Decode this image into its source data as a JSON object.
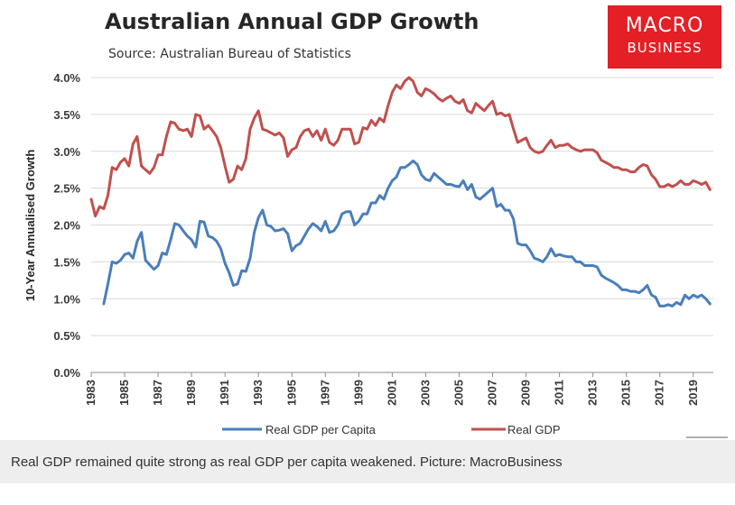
{
  "header": {
    "title": "Australian Annual GDP Growth",
    "subtitle": "Source: Australian Bureau of Statistics"
  },
  "logo": {
    "line1": "MACRO",
    "line2": "BUSINESS",
    "background_color": "#e41f26"
  },
  "caption": "Real GDP remained quite strong as real GDP per capita weakened. Picture: MacroBusiness",
  "chart_data": {
    "type": "line",
    "title": "Australian Annual GDP Growth",
    "xlabel": "",
    "ylabel": "10-Year Annualised Growth",
    "xlim": [
      1983,
      2020.2
    ],
    "ylim": [
      0,
      4
    ],
    "x_tick_labels": [
      "1983",
      "1985",
      "1987",
      "1989",
      "1991",
      "1993",
      "1995",
      "1997",
      "1999",
      "2001",
      "2003",
      "2005",
      "2007",
      "2009",
      "2011",
      "2013",
      "2015",
      "2017",
      "2019"
    ],
    "y_tick_labels": [
      "0.0%",
      "0.5%",
      "1.0%",
      "1.5%",
      "2.0%",
      "2.5%",
      "3.0%",
      "3.5%",
      "4.0%"
    ],
    "grid": "horizontal",
    "legend_position": "bottom",
    "series": [
      {
        "name": "Real GDP per Capita",
        "color": "#4a7ebb",
        "points": [
          [
            1983.75,
            0.93
          ],
          [
            1984.0,
            1.2
          ],
          [
            1984.25,
            1.5
          ],
          [
            1984.5,
            1.48
          ],
          [
            1984.75,
            1.52
          ],
          [
            1985.0,
            1.6
          ],
          [
            1985.25,
            1.62
          ],
          [
            1985.5,
            1.55
          ],
          [
            1985.75,
            1.78
          ],
          [
            1986.0,
            1.9
          ],
          [
            1986.25,
            1.52
          ],
          [
            1986.5,
            1.46
          ],
          [
            1986.75,
            1.4
          ],
          [
            1987.0,
            1.45
          ],
          [
            1987.25,
            1.62
          ],
          [
            1987.5,
            1.6
          ],
          [
            1987.75,
            1.8
          ],
          [
            1988.0,
            2.02
          ],
          [
            1988.25,
            2.0
          ],
          [
            1988.5,
            1.92
          ],
          [
            1988.75,
            1.85
          ],
          [
            1989.0,
            1.8
          ],
          [
            1989.25,
            1.7
          ],
          [
            1989.5,
            2.05
          ],
          [
            1989.75,
            2.04
          ],
          [
            1990.0,
            1.85
          ],
          [
            1990.25,
            1.83
          ],
          [
            1990.5,
            1.78
          ],
          [
            1990.75,
            1.68
          ],
          [
            1991.0,
            1.48
          ],
          [
            1991.25,
            1.35
          ],
          [
            1991.5,
            1.18
          ],
          [
            1991.75,
            1.2
          ],
          [
            1992.0,
            1.38
          ],
          [
            1992.25,
            1.37
          ],
          [
            1992.5,
            1.55
          ],
          [
            1992.75,
            1.9
          ],
          [
            1993.0,
            2.1
          ],
          [
            1993.25,
            2.2
          ],
          [
            1993.5,
            2.0
          ],
          [
            1993.75,
            1.98
          ],
          [
            1994.0,
            1.92
          ],
          [
            1994.25,
            1.93
          ],
          [
            1994.5,
            1.95
          ],
          [
            1994.75,
            1.88
          ],
          [
            1995.0,
            1.65
          ],
          [
            1995.25,
            1.72
          ],
          [
            1995.5,
            1.75
          ],
          [
            1995.75,
            1.85
          ],
          [
            1996.0,
            1.95
          ],
          [
            1996.25,
            2.02
          ],
          [
            1996.5,
            1.98
          ],
          [
            1996.75,
            1.92
          ],
          [
            1997.0,
            2.05
          ],
          [
            1997.25,
            1.9
          ],
          [
            1997.5,
            1.92
          ],
          [
            1997.75,
            2.0
          ],
          [
            1998.0,
            2.15
          ],
          [
            1998.25,
            2.18
          ],
          [
            1998.5,
            2.18
          ],
          [
            1998.75,
            2.0
          ],
          [
            1999.0,
            2.05
          ],
          [
            1999.25,
            2.15
          ],
          [
            1999.5,
            2.15
          ],
          [
            1999.75,
            2.3
          ],
          [
            2000.0,
            2.3
          ],
          [
            2000.25,
            2.4
          ],
          [
            2000.5,
            2.35
          ],
          [
            2000.75,
            2.5
          ],
          [
            2001.0,
            2.6
          ],
          [
            2001.25,
            2.65
          ],
          [
            2001.5,
            2.78
          ],
          [
            2001.75,
            2.78
          ],
          [
            2002.0,
            2.82
          ],
          [
            2002.25,
            2.87
          ],
          [
            2002.5,
            2.82
          ],
          [
            2002.75,
            2.68
          ],
          [
            2003.0,
            2.62
          ],
          [
            2003.25,
            2.6
          ],
          [
            2003.5,
            2.7
          ],
          [
            2003.75,
            2.65
          ],
          [
            2004.0,
            2.6
          ],
          [
            2004.25,
            2.55
          ],
          [
            2004.5,
            2.55
          ],
          [
            2004.75,
            2.53
          ],
          [
            2005.0,
            2.52
          ],
          [
            2005.25,
            2.6
          ],
          [
            2005.5,
            2.48
          ],
          [
            2005.75,
            2.55
          ],
          [
            2006.0,
            2.38
          ],
          [
            2006.25,
            2.35
          ],
          [
            2006.5,
            2.4
          ],
          [
            2006.75,
            2.45
          ],
          [
            2007.0,
            2.5
          ],
          [
            2007.25,
            2.25
          ],
          [
            2007.5,
            2.28
          ],
          [
            2007.75,
            2.2
          ],
          [
            2008.0,
            2.2
          ],
          [
            2008.25,
            2.08
          ],
          [
            2008.5,
            1.75
          ],
          [
            2008.75,
            1.73
          ],
          [
            2009.0,
            1.73
          ],
          [
            2009.25,
            1.65
          ],
          [
            2009.5,
            1.55
          ],
          [
            2009.75,
            1.53
          ],
          [
            2010.0,
            1.5
          ],
          [
            2010.25,
            1.57
          ],
          [
            2010.5,
            1.68
          ],
          [
            2010.75,
            1.58
          ],
          [
            2011.0,
            1.6
          ],
          [
            2011.25,
            1.58
          ],
          [
            2011.5,
            1.57
          ],
          [
            2011.75,
            1.57
          ],
          [
            2012.0,
            1.5
          ],
          [
            2012.25,
            1.5
          ],
          [
            2012.5,
            1.45
          ],
          [
            2012.75,
            1.45
          ],
          [
            2013.0,
            1.45
          ],
          [
            2013.25,
            1.43
          ],
          [
            2013.5,
            1.32
          ],
          [
            2013.75,
            1.28
          ],
          [
            2014.0,
            1.25
          ],
          [
            2014.25,
            1.22
          ],
          [
            2014.5,
            1.18
          ],
          [
            2014.75,
            1.12
          ],
          [
            2015.0,
            1.12
          ],
          [
            2015.25,
            1.1
          ],
          [
            2015.5,
            1.1
          ],
          [
            2015.75,
            1.08
          ],
          [
            2016.0,
            1.12
          ],
          [
            2016.25,
            1.18
          ],
          [
            2016.5,
            1.05
          ],
          [
            2016.75,
            1.02
          ],
          [
            2017.0,
            0.9
          ],
          [
            2017.25,
            0.9
          ],
          [
            2017.5,
            0.92
          ],
          [
            2017.75,
            0.9
          ],
          [
            2018.0,
            0.95
          ],
          [
            2018.25,
            0.92
          ],
          [
            2018.5,
            1.05
          ],
          [
            2018.75,
            1.0
          ],
          [
            2019.0,
            1.05
          ],
          [
            2019.25,
            1.02
          ],
          [
            2019.5,
            1.05
          ],
          [
            2019.75,
            1.0
          ],
          [
            2020.0,
            0.93
          ]
        ]
      },
      {
        "name": "Real GDP",
        "color": "#c0504d",
        "points": [
          [
            1983.0,
            2.35
          ],
          [
            1983.25,
            2.12
          ],
          [
            1983.5,
            2.25
          ],
          [
            1983.75,
            2.22
          ],
          [
            1984.0,
            2.4
          ],
          [
            1984.25,
            2.78
          ],
          [
            1984.5,
            2.75
          ],
          [
            1984.75,
            2.85
          ],
          [
            1985.0,
            2.9
          ],
          [
            1985.25,
            2.8
          ],
          [
            1985.5,
            3.1
          ],
          [
            1985.75,
            3.2
          ],
          [
            1986.0,
            2.8
          ],
          [
            1986.25,
            2.75
          ],
          [
            1986.5,
            2.7
          ],
          [
            1986.75,
            2.78
          ],
          [
            1987.0,
            2.95
          ],
          [
            1987.25,
            2.95
          ],
          [
            1987.5,
            3.2
          ],
          [
            1987.75,
            3.4
          ],
          [
            1988.0,
            3.38
          ],
          [
            1988.25,
            3.3
          ],
          [
            1988.5,
            3.28
          ],
          [
            1988.75,
            3.3
          ],
          [
            1989.0,
            3.2
          ],
          [
            1989.25,
            3.5
          ],
          [
            1989.5,
            3.48
          ],
          [
            1989.75,
            3.3
          ],
          [
            1990.0,
            3.35
          ],
          [
            1990.25,
            3.28
          ],
          [
            1990.5,
            3.2
          ],
          [
            1990.75,
            3.05
          ],
          [
            1991.0,
            2.8
          ],
          [
            1991.25,
            2.58
          ],
          [
            1991.5,
            2.62
          ],
          [
            1991.75,
            2.8
          ],
          [
            1992.0,
            2.75
          ],
          [
            1992.25,
            2.9
          ],
          [
            1992.5,
            3.3
          ],
          [
            1992.75,
            3.45
          ],
          [
            1993.0,
            3.55
          ],
          [
            1993.25,
            3.3
          ],
          [
            1993.5,
            3.28
          ],
          [
            1993.75,
            3.25
          ],
          [
            1994.0,
            3.22
          ],
          [
            1994.25,
            3.25
          ],
          [
            1994.5,
            3.18
          ],
          [
            1994.75,
            2.93
          ],
          [
            1995.0,
            3.02
          ],
          [
            1995.25,
            3.05
          ],
          [
            1995.5,
            3.2
          ],
          [
            1995.75,
            3.28
          ],
          [
            1996.0,
            3.3
          ],
          [
            1996.25,
            3.2
          ],
          [
            1996.5,
            3.28
          ],
          [
            1996.75,
            3.15
          ],
          [
            1997.0,
            3.3
          ],
          [
            1997.25,
            3.12
          ],
          [
            1997.5,
            3.08
          ],
          [
            1997.75,
            3.15
          ],
          [
            1998.0,
            3.3
          ],
          [
            1998.25,
            3.3
          ],
          [
            1998.5,
            3.3
          ],
          [
            1998.75,
            3.1
          ],
          [
            1999.0,
            3.12
          ],
          [
            1999.25,
            3.32
          ],
          [
            1999.5,
            3.3
          ],
          [
            1999.75,
            3.42
          ],
          [
            2000.0,
            3.35
          ],
          [
            2000.25,
            3.45
          ],
          [
            2000.5,
            3.4
          ],
          [
            2000.75,
            3.62
          ],
          [
            2001.0,
            3.8
          ],
          [
            2001.25,
            3.9
          ],
          [
            2001.5,
            3.85
          ],
          [
            2001.75,
            3.95
          ],
          [
            2002.0,
            4.0
          ],
          [
            2002.25,
            3.95
          ],
          [
            2002.5,
            3.8
          ],
          [
            2002.75,
            3.75
          ],
          [
            2003.0,
            3.85
          ],
          [
            2003.25,
            3.82
          ],
          [
            2003.5,
            3.78
          ],
          [
            2003.75,
            3.72
          ],
          [
            2004.0,
            3.68
          ],
          [
            2004.25,
            3.72
          ],
          [
            2004.5,
            3.75
          ],
          [
            2004.75,
            3.68
          ],
          [
            2005.0,
            3.65
          ],
          [
            2005.25,
            3.7
          ],
          [
            2005.5,
            3.55
          ],
          [
            2005.75,
            3.52
          ],
          [
            2006.0,
            3.65
          ],
          [
            2006.25,
            3.6
          ],
          [
            2006.5,
            3.55
          ],
          [
            2006.75,
            3.62
          ],
          [
            2007.0,
            3.68
          ],
          [
            2007.25,
            3.5
          ],
          [
            2007.5,
            3.52
          ],
          [
            2007.75,
            3.48
          ],
          [
            2008.0,
            3.5
          ],
          [
            2008.25,
            3.3
          ],
          [
            2008.5,
            3.12
          ],
          [
            2008.75,
            3.15
          ],
          [
            2009.0,
            3.18
          ],
          [
            2009.25,
            3.05
          ],
          [
            2009.5,
            3.0
          ],
          [
            2009.75,
            2.98
          ],
          [
            2010.0,
            3.0
          ],
          [
            2010.25,
            3.08
          ],
          [
            2010.5,
            3.15
          ],
          [
            2010.75,
            3.05
          ],
          [
            2011.0,
            3.08
          ],
          [
            2011.25,
            3.08
          ],
          [
            2011.5,
            3.1
          ],
          [
            2011.75,
            3.05
          ],
          [
            2012.0,
            3.02
          ],
          [
            2012.25,
            3.0
          ],
          [
            2012.5,
            3.02
          ],
          [
            2012.75,
            3.02
          ],
          [
            2013.0,
            3.02
          ],
          [
            2013.25,
            2.98
          ],
          [
            2013.5,
            2.88
          ],
          [
            2013.75,
            2.85
          ],
          [
            2014.0,
            2.82
          ],
          [
            2014.25,
            2.78
          ],
          [
            2014.5,
            2.78
          ],
          [
            2014.75,
            2.75
          ],
          [
            2015.0,
            2.75
          ],
          [
            2015.25,
            2.72
          ],
          [
            2015.5,
            2.72
          ],
          [
            2015.75,
            2.78
          ],
          [
            2016.0,
            2.82
          ],
          [
            2016.25,
            2.8
          ],
          [
            2016.5,
            2.68
          ],
          [
            2016.75,
            2.62
          ],
          [
            2017.0,
            2.52
          ],
          [
            2017.25,
            2.52
          ],
          [
            2017.5,
            2.55
          ],
          [
            2017.75,
            2.52
          ],
          [
            2018.0,
            2.55
          ],
          [
            2018.25,
            2.6
          ],
          [
            2018.5,
            2.55
          ],
          [
            2018.75,
            2.55
          ],
          [
            2019.0,
            2.6
          ],
          [
            2019.25,
            2.58
          ],
          [
            2019.5,
            2.55
          ],
          [
            2019.75,
            2.58
          ],
          [
            2020.0,
            2.48
          ]
        ]
      }
    ]
  }
}
